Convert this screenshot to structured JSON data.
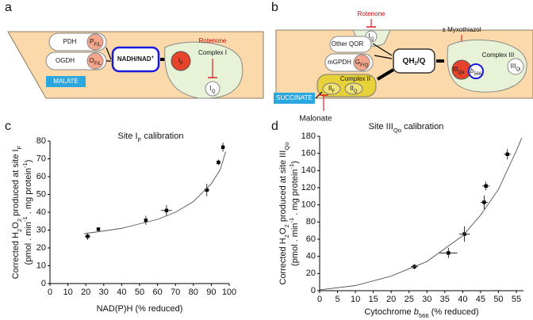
{
  "panel_labels": [
    "a",
    "b",
    "c",
    "d"
  ],
  "diagram_a": {
    "pdh": "PDH",
    "p_site": {
      "text": "P",
      "sub": "F/L"
    },
    "ogdh": "OGDH",
    "o_site": {
      "text": "O",
      "sub": "F/L"
    },
    "nadh": {
      "text": "NADH/NAD",
      "sup": "+"
    },
    "if_site": {
      "text": "I",
      "sub": "F"
    },
    "complex": "Complex I",
    "inhibitor": "Rotenone",
    "iq_site": {
      "text": "I",
      "sub": "Q"
    },
    "substrate": "MALATE"
  },
  "diagram_b": {
    "inhibitor_top": "Rotenone",
    "iq_site": {
      "text": "I",
      "sub": "Q"
    },
    "myxothiazol": "± Myxothiazol",
    "other_qor": "Other QOR",
    "mgpdh": "mGPDH",
    "g_site": {
      "text": "G",
      "sub": "F/Q"
    },
    "q_pool": {
      "text": "QH",
      "sub": "2",
      "rest": "/Q"
    },
    "complex3": "Complex III",
    "qo_site": {
      "text": "III",
      "sub": "Qo"
    },
    "b566": {
      "text": "b",
      "sub": "566"
    },
    "qi_site": {
      "text": "III",
      "sub": "Qi"
    },
    "complex2": "Complex II",
    "iif_site": {
      "text": "II",
      "sub": "F"
    },
    "iiq_site": {
      "text": "II",
      "sub": "Q"
    },
    "substrate": "SUCCINATE",
    "malonate": "Malonate"
  },
  "chart_data": [
    {
      "type": "scatter",
      "title": [
        "Site I",
        {
          "sub": "F"
        },
        " calibration"
      ],
      "xlabel": [
        "NAD(P)H (% reduced)"
      ],
      "ylabel": [
        [
          "Corrected H",
          {
            "sub": "2"
          },
          "O",
          {
            "sub": "2"
          },
          " produced at site I",
          {
            "sub": "F"
          }
        ],
        [
          "(pmol . min",
          {
            "sup": "-1"
          },
          " . mg protein",
          {
            "sup": "-1"
          },
          ")"
        ]
      ],
      "xlim": [
        0,
        100
      ],
      "xticks": [
        0,
        10,
        20,
        30,
        40,
        50,
        60,
        70,
        80,
        90,
        100
      ],
      "ylim": [
        0,
        80
      ],
      "yticks": [
        0,
        10,
        20,
        30,
        40,
        50,
        60,
        70,
        80
      ],
      "series": [
        {
          "color": "#000000",
          "x": [
            21,
            27,
            53.5,
            65,
            87.5,
            94,
            96.5
          ],
          "y": [
            26.5,
            30.5,
            35.5,
            41,
            52.5,
            68,
            76.5
          ],
          "xerr": [
            1.5,
            0,
            1,
            3,
            1.5,
            1,
            1
          ],
          "yerr": [
            2,
            1,
            2.5,
            3,
            3.5,
            1.5,
            2.5
          ]
        }
      ],
      "fit": {
        "color": "#555555",
        "x": [
          19,
          30,
          40,
          50,
          60,
          70,
          80,
          90,
          95,
          98
        ],
        "y": [
          28,
          29.5,
          31,
          33.5,
          36,
          40,
          46,
          56,
          64,
          74
        ]
      }
    },
    {
      "type": "scatter",
      "title": [
        "Site III",
        {
          "sub": "Qo"
        },
        " calibration"
      ],
      "xlabel": [
        "Cytochrome ",
        {
          "italic": "b"
        },
        {
          "sub": "566"
        },
        " (% reduced)"
      ],
      "ylabel": [
        [
          "Corrected H",
          {
            "sub": "2"
          },
          "O",
          {
            "sub": "2"
          },
          " produced at site III",
          {
            "sub": "Qo"
          }
        ],
        [
          "(pmol . min",
          {
            "sup": "-1"
          },
          " . mg protein",
          {
            "sup": "-1"
          },
          ")"
        ]
      ],
      "xlim": [
        0,
        57
      ],
      "xticks": [
        0,
        5,
        10,
        15,
        20,
        25,
        30,
        35,
        40,
        45,
        50,
        55
      ],
      "ylim": [
        0,
        180
      ],
      "yticks": [
        0,
        20,
        40,
        60,
        80,
        100,
        120,
        140,
        160,
        180
      ],
      "series": [
        {
          "color": "#000000",
          "x": [
            26.5,
            36,
            40.5,
            46,
            46.5,
            52.5
          ],
          "y": [
            28,
            44,
            66,
            103,
            122,
            159
          ],
          "xerr": [
            1,
            2.5,
            1.5,
            1,
            1,
            1
          ],
          "yerr": [
            3,
            6,
            9,
            8,
            5,
            6
          ]
        }
      ],
      "fit": {
        "color": "#555555",
        "x": [
          0,
          10,
          20,
          30,
          40,
          45,
          50,
          55,
          56.5
        ],
        "y": [
          1,
          6,
          17,
          34,
          64,
          88,
          118,
          163,
          178
        ]
      }
    }
  ]
}
